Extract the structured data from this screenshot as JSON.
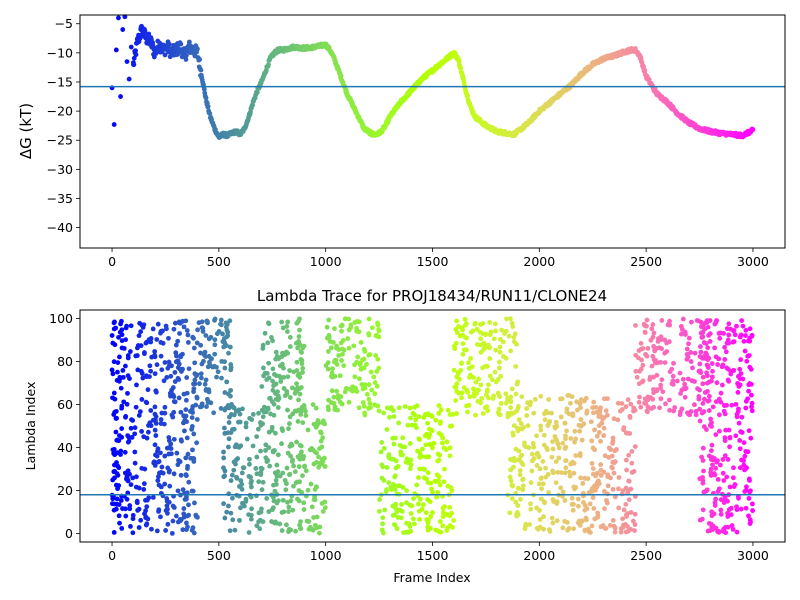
{
  "chart_data": [
    {
      "type": "scatter",
      "title": "",
      "xlabel": "",
      "ylabel": "ΔG (kT)",
      "xlim": [
        -150,
        3150
      ],
      "ylim": [
        -43.5,
        -3.5
      ],
      "xticks": [
        0,
        500,
        1000,
        1500,
        2000,
        2500,
        3000
      ],
      "yticks": [
        -40,
        -35,
        -30,
        -25,
        -20,
        -15,
        -10,
        -5
      ],
      "hline": -15.8,
      "hline_color": "#1f77b4",
      "colormap": "rainbow (red at frame 0 → violet at frame 3000)",
      "grid": false,
      "legend": "none",
      "series": [
        {
          "x": [
            0,
            10,
            20,
            30,
            40,
            50,
            60,
            70,
            80,
            90,
            100,
            120,
            140,
            160,
            180,
            200,
            220,
            240,
            260,
            280,
            300,
            320,
            340,
            360,
            380,
            400,
            420,
            440,
            460,
            480,
            500,
            520,
            540,
            560,
            580,
            600,
            620,
            640,
            660,
            680,
            700,
            720,
            740,
            760,
            780,
            800,
            850,
            900,
            950,
            1000,
            1020,
            1040,
            1060,
            1080,
            1100,
            1120,
            1140,
            1160,
            1180,
            1200,
            1220,
            1240,
            1260,
            1280,
            1300,
            1350,
            1400,
            1450,
            1500,
            1550,
            1600,
            1620,
            1640,
            1660,
            1680,
            1700,
            1750,
            1800,
            1850,
            1880,
            1900,
            1950,
            2000,
            2050,
            2100,
            2150,
            2200,
            2250,
            2300,
            2350,
            2400,
            2430,
            2450,
            2470,
            2500,
            2550,
            2600,
            2650,
            2700,
            2750,
            2800,
            2850,
            2900,
            2950,
            3000
          ],
          "y": [
            -16.0,
            -22.3,
            -9.5,
            -4.0,
            -17.5,
            -6.0,
            -3.8,
            -11.5,
            -14.5,
            -9.0,
            -12.0,
            -8.0,
            -6.0,
            -7.5,
            -8.0,
            -10.0,
            -8.5,
            -9.5,
            -9.0,
            -10.0,
            -9.5,
            -9.0,
            -10.5,
            -9.0,
            -9.5,
            -10.0,
            -14.0,
            -18.0,
            -21.0,
            -23.0,
            -24.5,
            -24.0,
            -24.2,
            -23.8,
            -23.5,
            -24.0,
            -23.0,
            -21.0,
            -18.5,
            -16.5,
            -15.0,
            -13.0,
            -11.0,
            -10.0,
            -9.5,
            -9.5,
            -9.0,
            -9.2,
            -9.0,
            -8.6,
            -9.5,
            -11.0,
            -13.0,
            -15.0,
            -17.0,
            -18.5,
            -20.0,
            -21.5,
            -23.0,
            -23.5,
            -24.0,
            -24.0,
            -23.5,
            -22.5,
            -21.0,
            -18.5,
            -16.5,
            -14.5,
            -13.0,
            -11.5,
            -10.0,
            -11.0,
            -14.0,
            -17.0,
            -19.5,
            -21.0,
            -22.5,
            -23.5,
            -23.8,
            -24.0,
            -23.5,
            -22.0,
            -20.0,
            -18.5,
            -17.0,
            -15.5,
            -13.5,
            -12.0,
            -11.0,
            -10.5,
            -9.8,
            -9.5,
            -9.5,
            -10.5,
            -14.0,
            -17.0,
            -18.5,
            -20.5,
            -22.0,
            -23.0,
            -23.5,
            -23.8,
            -24.0,
            -24.2,
            -23.3
          ]
        }
      ]
    },
    {
      "type": "scatter",
      "title": "Lambda Trace for PROJ18434/RUN11/CLONE24",
      "xlabel": "Frame Index",
      "ylabel": "Lambda Index",
      "xlim": [
        -150,
        3150
      ],
      "ylim": [
        -4,
        104
      ],
      "xticks": [
        0,
        500,
        1000,
        1500,
        2000,
        2500,
        3000
      ],
      "yticks": [
        0,
        20,
        40,
        60,
        80,
        100
      ],
      "hline": 18,
      "hline_color": "#1f77b4",
      "colormap": "rainbow (red at frame 0 → violet at frame 3000)",
      "grid": false,
      "legend": "none",
      "density_bands": [
        {
          "x": [
            0,
            30
          ],
          "y": [
            0,
            100
          ]
        },
        {
          "x": [
            30,
            400
          ],
          "y": [
            0,
            100
          ]
        },
        {
          "x": [
            400,
            560
          ],
          "y": [
            55,
            100
          ]
        },
        {
          "x": [
            520,
            1000
          ],
          "y": [
            0,
            60
          ]
        },
        {
          "x": [
            700,
            900
          ],
          "y": [
            60,
            100
          ]
        },
        {
          "x": [
            1000,
            1250
          ],
          "y": [
            55,
            100
          ]
        },
        {
          "x": [
            1250,
            1600
          ],
          "y": [
            0,
            60
          ]
        },
        {
          "x": [
            1600,
            1900
          ],
          "y": [
            55,
            100
          ]
        },
        {
          "x": [
            1850,
            2450
          ],
          "y": [
            0,
            65
          ]
        },
        {
          "x": [
            2450,
            2800
          ],
          "y": [
            55,
            100
          ]
        },
        {
          "x": [
            2750,
            3000
          ],
          "y": [
            0,
            100
          ]
        }
      ]
    }
  ]
}
